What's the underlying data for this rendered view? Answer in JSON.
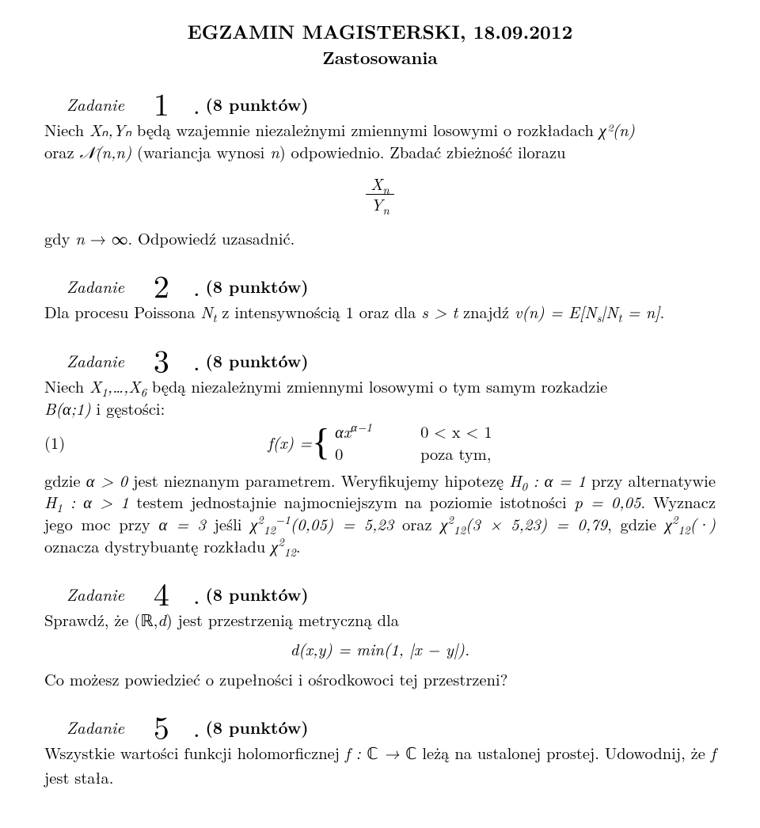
{
  "header": {
    "title": "EGZAMIN MAGISTERSKI, 18.09.2012",
    "subtitle": "Zastosowania"
  },
  "labels": {
    "zadanie": "Zadanie",
    "points": "(8 punktów)"
  },
  "task1": {
    "num": "1",
    "body1_a": "Niech ",
    "body1_b": " będą wzajemnie niezależnymi zmiennymi losowymi o rozkładach ",
    "body1_c": " oraz ",
    "body1_d": " (wariancja wynosi ",
    "body1_e": ") odpowiednio. Zbadać zbieżność ilorazu",
    "frac_num": "Xₙ",
    "frac_den": "Yₙ",
    "body2": "gdy n → ∞. Odpowiedź uzasadnić.",
    "sym_Xn": "Xₙ,Yₙ",
    "sym_chi2n": "χ²(n)",
    "sym_N": "𝓝(n,n)",
    "sym_n": "n"
  },
  "task2": {
    "num": "2",
    "body_a": "Dla procesu Poissona ",
    "body_b": " z intensywnością 1 oraz dla ",
    "body_c": " znajdź ",
    "body_d": ".",
    "sym_Nt": "Nₜ",
    "sym_st": "s > t",
    "sym_vn": "v(n) = E[Nₛ|Nₜ = n]"
  },
  "task3": {
    "num": "3",
    "body_a": "Niech ",
    "body_b": " będą niezależnymi zmiennymi losowymi o tym samym rozkadzie ",
    "body_c": " i gęstości:",
    "sym_X": "X₁,…,X₆",
    "sym_B": "B(α;1)",
    "eq_label": "(1)",
    "eq_lhs": "f(x) = ",
    "case1_expr": "αxᵅ⁻¹",
    "case1_cond": "0 < x < 1",
    "case2_expr": "0",
    "case2_cond": "poza tym,",
    "p2_a": "gdzie ",
    "p2_b": " jest nieznanym parametrem. Weryfikujemy hipotezę ",
    "p2_c": " przy alternatywie ",
    "p2_d": " testem jednostajnie najmocniejszym na poziomie istotności ",
    "p2_e": ". Wyznacz jego moc przy ",
    "p2_f": " jeśli ",
    "p2_g": " oraz ",
    "p2_h": ", gdzie ",
    "p2_i": " oznacza dystrybuantę rozkładu ",
    "p2_j": ".",
    "sym_alpha_pos": "α > 0",
    "sym_H0": "H₀ : α = 1",
    "sym_H1": "H₁ : α > 1",
    "sym_p": "p = 0,05",
    "sym_alpha3": "α = 3",
    "sym_chi_inv": "χ²₁₂⁻¹(0,05) = 5,23",
    "sym_chi_val": "χ²₁₂(3 × 5,23) = 0,79",
    "sym_chi_cdf": "χ²₁₂(·)",
    "sym_chi12": "χ²₁₂"
  },
  "task4": {
    "num": "4",
    "body_a": "Sprawdź, że ",
    "body_b": " jest przestrzenią metryczną dla",
    "sym_Rd": "(ℝ,d)",
    "eq": "d(x,y) = min(1, |x − y|).",
    "body2": "Co możesz powiedzieć o zupełności i ośrodkowoci tej przestrzeni?"
  },
  "task5": {
    "num": "5",
    "body_a": "Wszystkie wartości funkcji holomorficznej ",
    "body_b": " leżą na ustalonej prostej. Udowodnij, że ",
    "body_c": " jest stała.",
    "sym_f": "f : ℂ → ℂ",
    "sym_f2": "f"
  }
}
